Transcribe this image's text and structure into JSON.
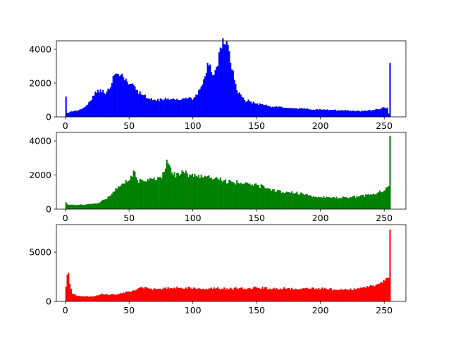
{
  "chart_data": [
    {
      "type": "bar",
      "name": "blue-channel-histogram",
      "color": "#0000ff",
      "bins": 256,
      "xlim": [
        -7,
        267
      ],
      "ylim": [
        0,
        4500
      ],
      "xticks": [
        "0",
        "50",
        "100",
        "150",
        "200",
        "250"
      ],
      "yticks": [
        "0",
        "2000",
        "4000"
      ],
      "ytick_values": [
        0,
        2000,
        4000
      ],
      "grid": false,
      "keypoints": [
        [
          0,
          1200
        ],
        [
          1,
          250
        ],
        [
          5,
          320
        ],
        [
          10,
          400
        ],
        [
          15,
          600
        ],
        [
          20,
          1000
        ],
        [
          23,
          1500
        ],
        [
          25,
          1600
        ],
        [
          28,
          1450
        ],
        [
          32,
          1500
        ],
        [
          36,
          2000
        ],
        [
          38,
          2500
        ],
        [
          40,
          2550
        ],
        [
          45,
          2350
        ],
        [
          50,
          1950
        ],
        [
          55,
          1600
        ],
        [
          60,
          1300
        ],
        [
          65,
          1100
        ],
        [
          70,
          1000
        ],
        [
          75,
          1050
        ],
        [
          80,
          1100
        ],
        [
          85,
          1050
        ],
        [
          90,
          1000
        ],
        [
          95,
          1050
        ],
        [
          100,
          1100
        ],
        [
          103,
          1300
        ],
        [
          106,
          1800
        ],
        [
          109,
          2400
        ],
        [
          111,
          3200
        ],
        [
          113,
          3100
        ],
        [
          116,
          2500
        ],
        [
          119,
          3000
        ],
        [
          121,
          4100
        ],
        [
          124,
          4300
        ],
        [
          127,
          4250
        ],
        [
          129,
          3200
        ],
        [
          132,
          2200
        ],
        [
          135,
          1400
        ],
        [
          140,
          1000
        ],
        [
          145,
          900
        ],
        [
          150,
          800
        ],
        [
          155,
          700
        ],
        [
          160,
          620
        ],
        [
          170,
          550
        ],
        [
          180,
          500
        ],
        [
          190,
          460
        ],
        [
          200,
          430
        ],
        [
          210,
          420
        ],
        [
          220,
          380
        ],
        [
          230,
          340
        ],
        [
          240,
          400
        ],
        [
          245,
          450
        ],
        [
          248,
          550
        ],
        [
          252,
          550
        ],
        [
          253,
          200
        ],
        [
          254,
          3200
        ],
        [
          255,
          0
        ]
      ]
    },
    {
      "type": "bar",
      "name": "green-channel-histogram",
      "color": "#008000",
      "bins": 256,
      "xlim": [
        -7,
        267
      ],
      "ylim": [
        0,
        4500
      ],
      "xticks": [
        "0",
        "50",
        "100",
        "150",
        "200",
        "250"
      ],
      "yticks": [
        "0",
        "2000",
        "4000"
      ],
      "ytick_values": [
        0,
        2000,
        4000
      ],
      "grid": false,
      "keypoints": [
        [
          0,
          400
        ],
        [
          2,
          250
        ],
        [
          10,
          250
        ],
        [
          20,
          300
        ],
        [
          25,
          350
        ],
        [
          30,
          550
        ],
        [
          35,
          800
        ],
        [
          40,
          1200
        ],
        [
          45,
          1500
        ],
        [
          50,
          1700
        ],
        [
          54,
          2200
        ],
        [
          56,
          1700
        ],
        [
          60,
          1700
        ],
        [
          65,
          1700
        ],
        [
          70,
          1700
        ],
        [
          75,
          1800
        ],
        [
          77,
          2200
        ],
        [
          79,
          2900
        ],
        [
          81,
          2600
        ],
        [
          84,
          2000
        ],
        [
          88,
          2100
        ],
        [
          92,
          2200
        ],
        [
          95,
          2100
        ],
        [
          100,
          1900
        ],
        [
          110,
          1900
        ],
        [
          120,
          1700
        ],
        [
          130,
          1600
        ],
        [
          140,
          1500
        ],
        [
          150,
          1400
        ],
        [
          160,
          1200
        ],
        [
          170,
          1000
        ],
        [
          180,
          950
        ],
        [
          190,
          800
        ],
        [
          200,
          700
        ],
        [
          210,
          700
        ],
        [
          220,
          700
        ],
        [
          230,
          750
        ],
        [
          240,
          850
        ],
        [
          245,
          1000
        ],
        [
          250,
          1100
        ],
        [
          252,
          1300
        ],
        [
          253,
          1350
        ],
        [
          254,
          4300
        ],
        [
          255,
          0
        ]
      ]
    },
    {
      "type": "bar",
      "name": "red-channel-histogram",
      "color": "#ff0000",
      "bins": 256,
      "xlim": [
        -7,
        267
      ],
      "ylim": [
        0,
        7800
      ],
      "xticks": [
        "0",
        "50",
        "100",
        "150",
        "200",
        "250"
      ],
      "yticks": [
        "0",
        "5000"
      ],
      "ytick_values": [
        0,
        5000
      ],
      "grid": false,
      "keypoints": [
        [
          0,
          1500
        ],
        [
          1,
          2700
        ],
        [
          2,
          2900
        ],
        [
          3,
          1800
        ],
        [
          5,
          800
        ],
        [
          8,
          600
        ],
        [
          12,
          500
        ],
        [
          20,
          500
        ],
        [
          25,
          600
        ],
        [
          28,
          800
        ],
        [
          30,
          700
        ],
        [
          35,
          700
        ],
        [
          40,
          700
        ],
        [
          45,
          900
        ],
        [
          50,
          1000
        ],
        [
          55,
          1200
        ],
        [
          60,
          1400
        ],
        [
          65,
          1300
        ],
        [
          70,
          1300
        ],
        [
          75,
          1200
        ],
        [
          80,
          1450
        ],
        [
          85,
          1400
        ],
        [
          90,
          1400
        ],
        [
          100,
          1400
        ],
        [
          110,
          1300
        ],
        [
          120,
          1300
        ],
        [
          130,
          1300
        ],
        [
          140,
          1300
        ],
        [
          150,
          1400
        ],
        [
          160,
          1300
        ],
        [
          170,
          1300
        ],
        [
          180,
          1300
        ],
        [
          190,
          1300
        ],
        [
          200,
          1300
        ],
        [
          210,
          1200
        ],
        [
          220,
          1200
        ],
        [
          230,
          1300
        ],
        [
          240,
          1600
        ],
        [
          245,
          1800
        ],
        [
          250,
          2100
        ],
        [
          252,
          2400
        ],
        [
          253,
          2400
        ],
        [
          254,
          7300
        ],
        [
          255,
          0
        ]
      ]
    }
  ]
}
